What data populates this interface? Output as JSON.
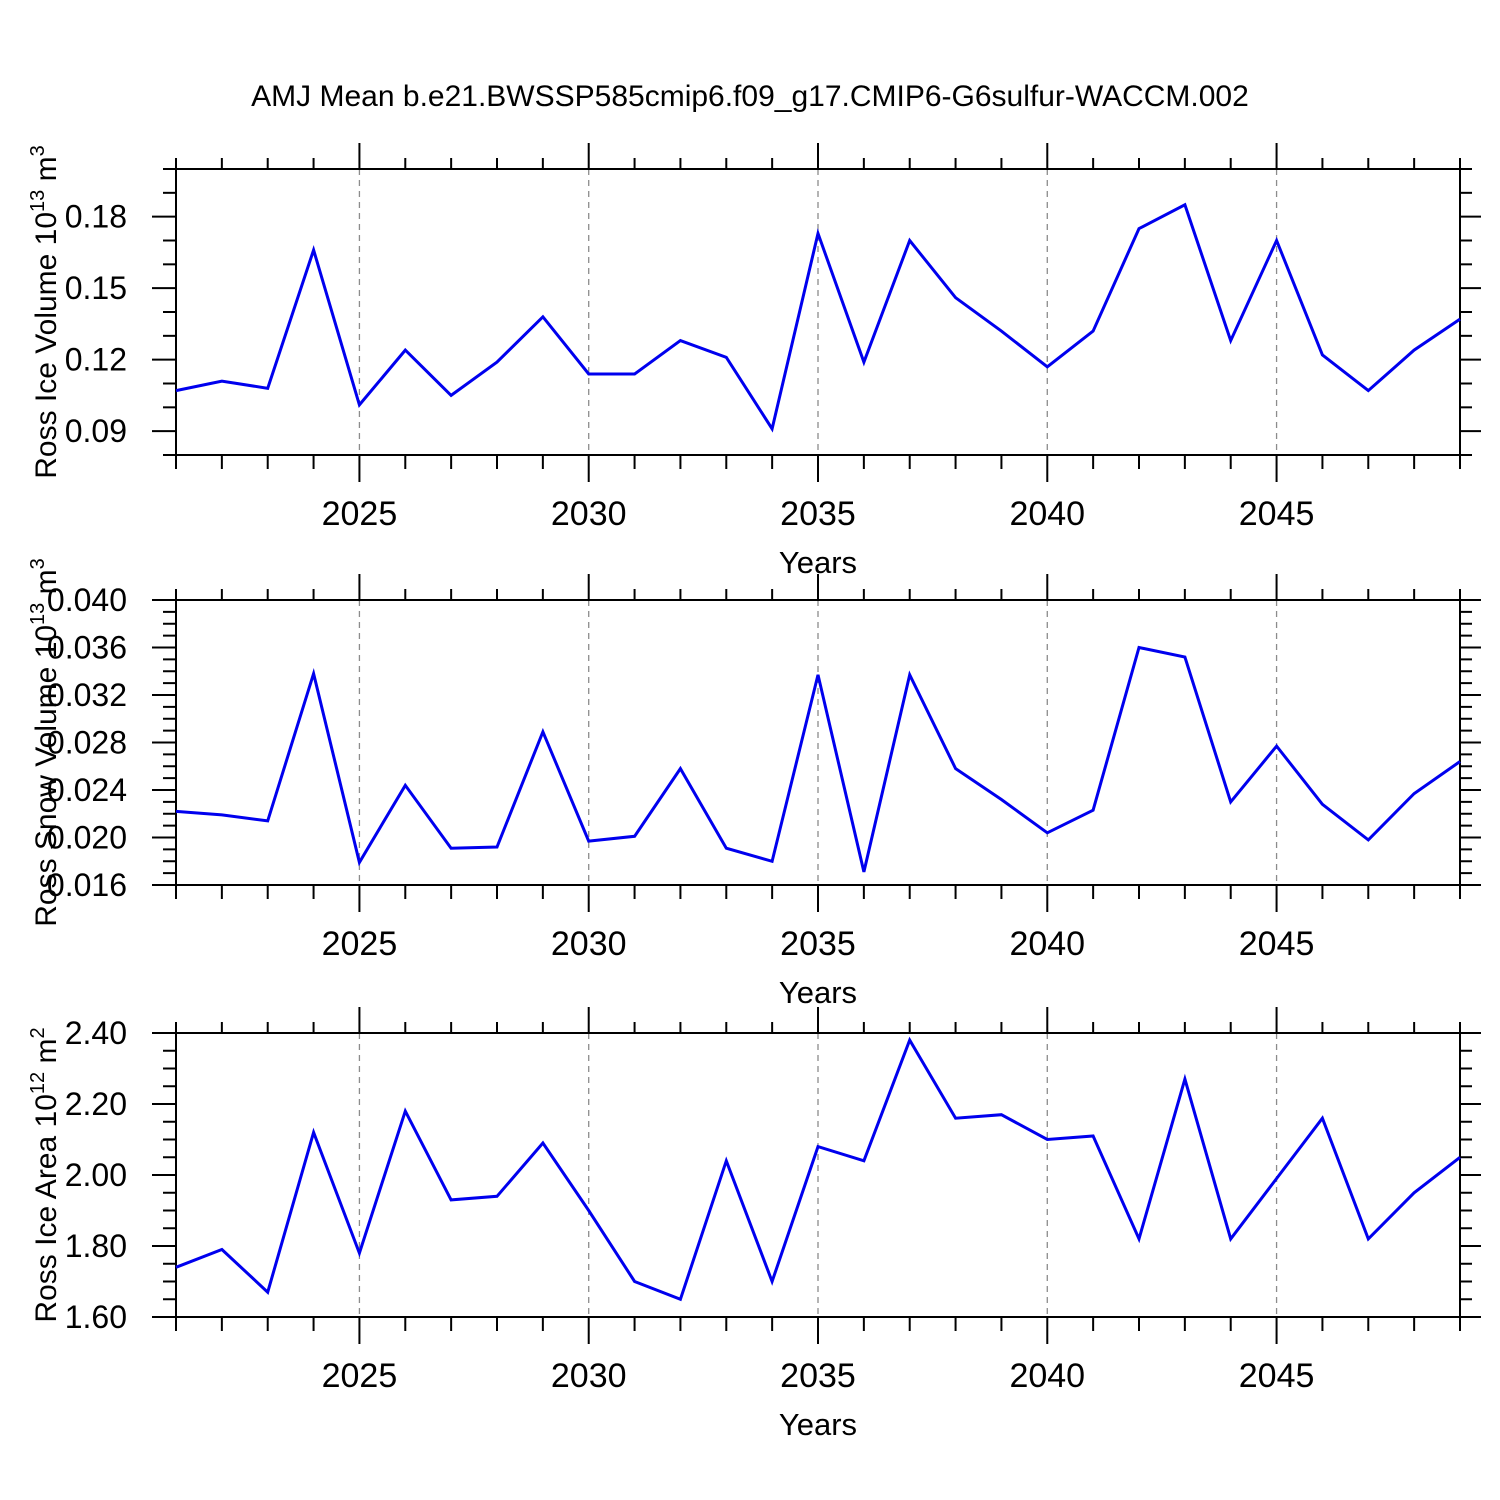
{
  "title": "AMJ Mean b.e21.BWSSP585cmip6.f09_g17.CMIP6-G6sulfur-WACCM.002",
  "colors": {
    "line": "#0000ee",
    "axis": "#000000",
    "grid": "#8c8c8c",
    "text": "#000000",
    "background": "#ffffff"
  },
  "x_axis": {
    "label": "Years",
    "xlim": [
      2021,
      2049
    ],
    "minor_step": 1,
    "major_ticks": [
      2025,
      2030,
      2035,
      2040,
      2045
    ],
    "tick_labels": [
      "2025",
      "2030",
      "2035",
      "2040",
      "2045"
    ],
    "years": [
      2021,
      2022,
      2023,
      2024,
      2025,
      2026,
      2027,
      2028,
      2029,
      2030,
      2031,
      2032,
      2033,
      2034,
      2035,
      2036,
      2037,
      2038,
      2039,
      2040,
      2041,
      2042,
      2043,
      2044,
      2045,
      2046,
      2047,
      2048,
      2049
    ]
  },
  "chart_data": [
    {
      "type": "line",
      "panel_name": "ross-ice-volume",
      "ylabel_text": "Ross Ice Volume 10^13 m^3",
      "ylabel_segments": [
        {
          "text": "Ross Ice Volume 10",
          "sup": false
        },
        {
          "text": "13",
          "sup": true
        },
        {
          "text": " m",
          "sup": false
        },
        {
          "text": "3",
          "sup": true
        }
      ],
      "xlabel": "Years",
      "ylim": [
        0.08,
        0.2
      ],
      "y_major_ticks": [
        0.09,
        0.12,
        0.15,
        0.18
      ],
      "y_tick_labels": [
        "0.09",
        "0.12",
        "0.15",
        "0.18"
      ],
      "y_minor_step": 0.01,
      "grid": "vertical-dashed",
      "legend": "none",
      "values": [
        0.107,
        0.111,
        0.108,
        0.166,
        0.101,
        0.124,
        0.105,
        0.119,
        0.138,
        0.114,
        0.114,
        0.128,
        0.121,
        0.091,
        0.173,
        0.119,
        0.17,
        0.146,
        0.132,
        0.117,
        0.132,
        0.175,
        0.185,
        0.128,
        0.17,
        0.122,
        0.107,
        0.124,
        0.137
      ]
    },
    {
      "type": "line",
      "panel_name": "ross-snow-volume",
      "ylabel_text": "Ross Snow Volume 10^13 m^3",
      "ylabel_segments": [
        {
          "text": "Ross Snow Volume 10",
          "sup": false
        },
        {
          "text": "13",
          "sup": true
        },
        {
          "text": " m",
          "sup": false
        },
        {
          "text": "3",
          "sup": true
        }
      ],
      "xlabel": "Years",
      "ylim": [
        0.016,
        0.04
      ],
      "y_major_ticks": [
        0.016,
        0.02,
        0.024,
        0.028,
        0.032,
        0.036,
        0.04
      ],
      "y_tick_labels": [
        "0.016",
        "0.020",
        "0.024",
        "0.028",
        "0.032",
        "0.036",
        "0.040"
      ],
      "y_minor_step": 0.001,
      "grid": "vertical-dashed",
      "legend": "none",
      "values": [
        0.0222,
        0.0219,
        0.0214,
        0.0338,
        0.0179,
        0.0244,
        0.0191,
        0.0192,
        0.0289,
        0.0197,
        0.0201,
        0.0258,
        0.0191,
        0.018,
        0.0337,
        0.0171,
        0.0337,
        0.0258,
        0.0232,
        0.0204,
        0.0223,
        0.036,
        0.0352,
        0.023,
        0.0277,
        0.0228,
        0.0198,
        0.0237,
        0.0264
      ]
    },
    {
      "type": "line",
      "panel_name": "ross-ice-area",
      "ylabel_text": "Ross Ice Area 10^12 m^2",
      "ylabel_segments": [
        {
          "text": "Ross Ice Area 10",
          "sup": false
        },
        {
          "text": "12",
          "sup": true
        },
        {
          "text": " m",
          "sup": false
        },
        {
          "text": "2",
          "sup": true
        }
      ],
      "xlabel": "Years",
      "ylim": [
        1.6,
        2.4
      ],
      "y_major_ticks": [
        1.6,
        1.8,
        2.0,
        2.2,
        2.4
      ],
      "y_tick_labels": [
        "1.60",
        "1.80",
        "2.00",
        "2.20",
        "2.40"
      ],
      "y_minor_step": 0.05,
      "grid": "vertical-dashed",
      "legend": "none",
      "values": [
        1.74,
        1.79,
        1.67,
        2.12,
        1.78,
        2.18,
        1.93,
        1.94,
        2.09,
        1.9,
        1.7,
        1.65,
        2.04,
        1.7,
        2.08,
        2.04,
        2.38,
        2.16,
        2.17,
        2.1,
        2.11,
        1.82,
        2.27,
        1.82,
        1.99,
        2.16,
        1.82,
        1.95,
        2.05
      ]
    }
  ]
}
